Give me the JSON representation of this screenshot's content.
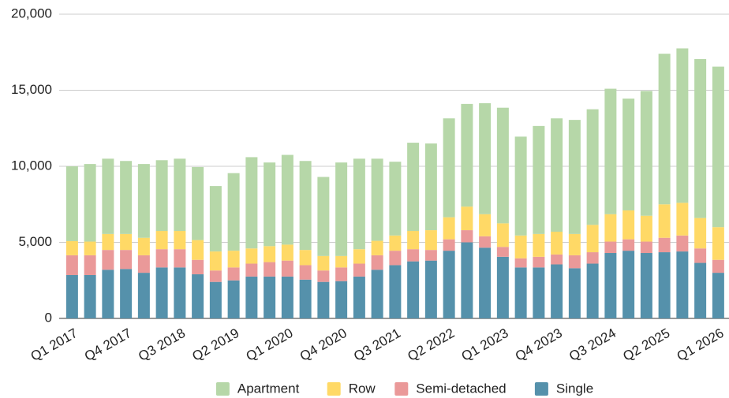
{
  "chart_data": {
    "type": "stacked-bar",
    "categories": [
      "Q1 2017",
      null,
      null,
      "Q4 2017",
      null,
      null,
      "Q3 2018",
      null,
      null,
      "Q2 2019",
      null,
      null,
      "Q1 2020",
      null,
      null,
      "Q4 2020",
      null,
      null,
      "Q3 2021",
      null,
      null,
      "Q2 2022",
      null,
      null,
      "Q1 2023",
      null,
      null,
      "Q4 2023",
      null,
      null,
      "Q3 2024",
      null,
      null,
      "Q2 2025",
      null,
      null,
      "Q1 2026"
    ],
    "series": [
      {
        "name": "Apartment",
        "color": "#b6d7a8",
        "values": [
          4920,
          5100,
          4950,
          4800,
          4850,
          4650,
          4750,
          4800,
          4300,
          5100,
          6000,
          5500,
          5900,
          5850,
          5200,
          6150,
          5950,
          5400,
          4850,
          5800,
          5700,
          6500,
          6750,
          7300,
          7600,
          6500,
          7100,
          7450,
          7500,
          7600,
          8250,
          7350,
          8200,
          9900,
          10150,
          10450,
          10550
        ]
      },
      {
        "name": "Row",
        "color": "#ffd966",
        "values": [
          930,
          900,
          1050,
          1050,
          1150,
          1200,
          1200,
          1300,
          1250,
          1100,
          1000,
          1050,
          1050,
          1000,
          950,
          750,
          950,
          950,
          1000,
          1200,
          1300,
          1450,
          1550,
          1450,
          1550,
          1500,
          1500,
          1500,
          1400,
          1800,
          1800,
          1900,
          1700,
          2200,
          2150,
          2000,
          2150
        ]
      },
      {
        "name": "Semi-detached",
        "color": "#ea9999",
        "values": [
          1300,
          1300,
          1300,
          1250,
          1150,
          1200,
          1200,
          950,
          750,
          850,
          850,
          950,
          1050,
          950,
          750,
          900,
          850,
          950,
          950,
          800,
          700,
          750,
          800,
          750,
          650,
          600,
          700,
          650,
          850,
          750,
          750,
          750,
          750,
          950,
          1050,
          950,
          850
        ]
      },
      {
        "name": "Single",
        "color": "#5591ab",
        "values": [
          2850,
          2850,
          3200,
          3250,
          3000,
          3350,
          3350,
          2900,
          2400,
          2500,
          2750,
          2750,
          2750,
          2550,
          2400,
          2450,
          2750,
          3200,
          3500,
          3750,
          3800,
          4450,
          5000,
          4650,
          4050,
          3350,
          3350,
          3550,
          3300,
          3600,
          4300,
          4450,
          4300,
          4350,
          4400,
          3650,
          3000
        ]
      }
    ],
    "ylim": [
      0,
      20000
    ],
    "yticks": [
      0,
      {
        "value": 5000,
        "label": "5,000"
      },
      {
        "value": 10000,
        "label": "10,000"
      },
      {
        "value": 15000,
        "label": "15,000"
      },
      {
        "value": 20000,
        "label": "20,000"
      }
    ],
    "grid": true,
    "legend": "bottom"
  }
}
